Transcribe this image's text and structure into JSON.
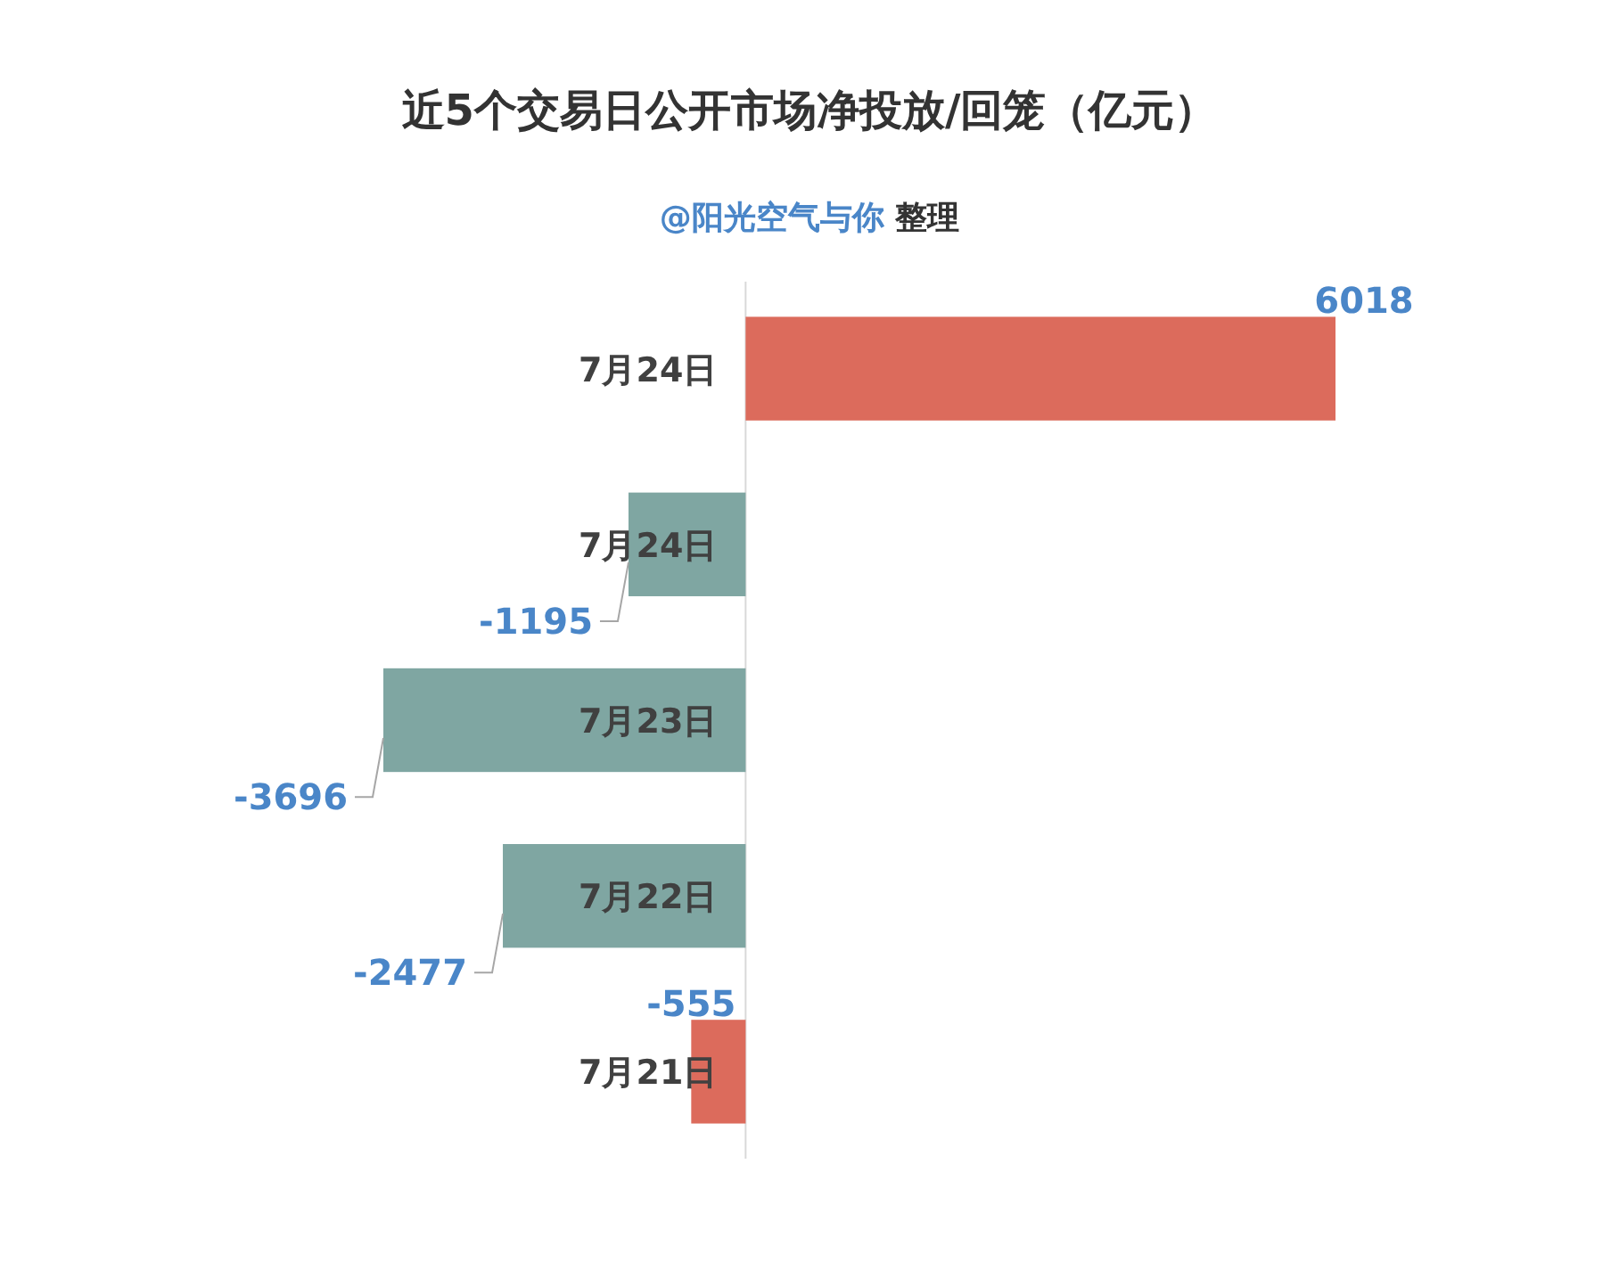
{
  "chart_data": {
    "type": "bar",
    "orientation": "horizontal",
    "title": "近5个交易日公开市场净投放/回笼（亿元）",
    "subtitle": "@阳光空气与你 整理",
    "categories": [
      "7月24日",
      "7月24日",
      "7月23日",
      "7月22日",
      "7月21日"
    ],
    "values": [
      6018,
      -1195,
      -3696,
      -2477,
      -555
    ],
    "colors": [
      "#dc6b5c",
      "#7fa6a2",
      "#7fa6a2",
      "#7fa6a2",
      "#dc6b5c"
    ],
    "data_labels": true
  }
}
